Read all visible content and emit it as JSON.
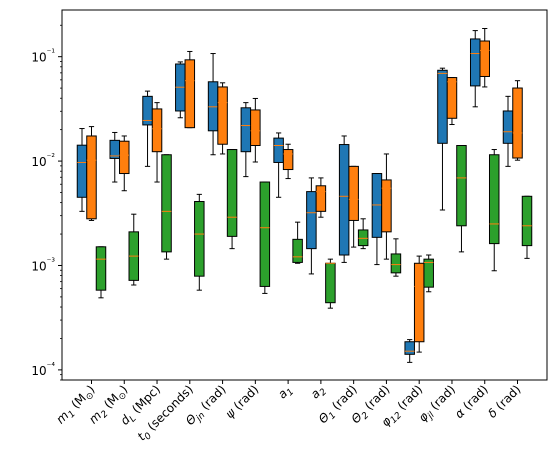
{
  "chart_data": {
    "type": "box",
    "title": "",
    "xlabel": "",
    "ylabel": "",
    "yscale": "log",
    "ylim": [
      8e-05,
      0.28
    ],
    "grid": false,
    "legend": "none",
    "y_tick_values": [
      0.0001,
      0.001,
      0.01,
      0.1
    ],
    "y_tick_labels": [
      "10⁻⁴",
      "10⁻³",
      "10⁻²",
      "10⁻¹"
    ],
    "categories": [
      "m_1 (M_⊙)",
      "m_2 (M_⊙)",
      "d_L (Mpc)",
      "t_0 (seconds)",
      "Θ_jn (rad)",
      "ψ (rad)",
      "a_1",
      "a_2",
      "Θ_1 (rad)",
      "Θ_2 (rad)",
      "φ_12 (rad)",
      "φ_jl (rad)",
      "α (rad)",
      "δ (rad)"
    ],
    "category_labels": [
      {
        "main": "m",
        "sub": "1",
        "rest": " (M",
        "sub2": "⊙",
        "tail": ")"
      },
      {
        "main": "m",
        "sub": "2",
        "rest": " (M",
        "sub2": "⊙",
        "tail": ")"
      },
      {
        "main": "d",
        "sub": "L",
        "rest": " (Mpc)",
        "sub2": "",
        "tail": ""
      },
      {
        "main": "t",
        "sub": "0",
        "rest": " (seconds)",
        "sub2": "",
        "tail": ""
      },
      {
        "main": "Θ",
        "sub": "jn",
        "rest": " (rad)",
        "sub2": "",
        "tail": ""
      },
      {
        "main": "ψ",
        "sub": "",
        "rest": " (rad)",
        "sub2": "",
        "tail": ""
      },
      {
        "main": "a",
        "sub": "1",
        "rest": "",
        "sub2": "",
        "tail": ""
      },
      {
        "main": "a",
        "sub": "2",
        "rest": "",
        "sub2": "",
        "tail": ""
      },
      {
        "main": "Θ",
        "sub": "1",
        "rest": " (rad)",
        "sub2": "",
        "tail": ""
      },
      {
        "main": "Θ",
        "sub": "2",
        "rest": " (rad)",
        "sub2": "",
        "tail": ""
      },
      {
        "main": "φ",
        "sub": "12",
        "rest": " (rad)",
        "sub2": "",
        "tail": ""
      },
      {
        "main": "φ",
        "sub": "jl",
        "rest": " (rad)",
        "sub2": "",
        "tail": ""
      },
      {
        "main": "α",
        "sub": "",
        "rest": " (rad)",
        "sub2": "",
        "tail": ""
      },
      {
        "main": "δ",
        "sub": "",
        "rest": " (rad)",
        "sub2": "",
        "tail": ""
      }
    ],
    "colors": {
      "median": "#ff7f0e",
      "edge": "#000000",
      "background": "#ffffff"
    },
    "series": [
      {
        "color": "#1f77b4",
        "boxes": [
          {
            "whislo": 0.0033,
            "q1": 0.0045,
            "med": 0.0097,
            "q3": 0.0142,
            "whishi": 0.0205
          },
          {
            "whislo": 0.0063,
            "q1": 0.0106,
            "med": 0.0112,
            "q3": 0.0158,
            "whishi": 0.0188
          },
          {
            "whislo": 0.0089,
            "q1": 0.0222,
            "med": 0.0245,
            "q3": 0.0417,
            "whishi": 0.0468
          },
          {
            "whislo": 0.026,
            "q1": 0.0302,
            "med": 0.051,
            "q3": 0.0851,
            "whishi": 0.0891
          },
          {
            "whislo": 0.0115,
            "q1": 0.0195,
            "med": 0.0331,
            "q3": 0.0575,
            "whishi": 0.1072
          },
          {
            "whislo": 0.0071,
            "q1": 0.0123,
            "med": 0.0219,
            "q3": 0.0324,
            "whishi": 0.0363
          },
          {
            "whislo": 0.0045,
            "q1": 0.0097,
            "med": 0.0141,
            "q3": 0.0166,
            "whishi": 0.0186
          },
          {
            "whislo": 0.00083,
            "q1": 0.00145,
            "med": 0.0032,
            "q3": 0.0051,
            "whishi": 0.0069
          },
          {
            "whislo": 0.00107,
            "q1": 0.00126,
            "med": 0.0046,
            "q3": 0.0144,
            "whishi": 0.0174
          },
          {
            "whislo": 0.00102,
            "q1": 0.00186,
            "med": 0.0038,
            "q3": 0.0076,
            "whishi": 0.0076
          },
          {
            "whislo": 0.000118,
            "q1": 0.000141,
            "med": 0.000151,
            "q3": 0.000186,
            "whishi": 0.000195
          },
          {
            "whislo": 0.0034,
            "q1": 0.0148,
            "med": 0.0692,
            "q3": 0.0741,
            "whishi": 0.0776
          },
          {
            "whislo": 0.0331,
            "q1": 0.0525,
            "med": 0.1072,
            "q3": 0.1479,
            "whishi": 0.1778
          },
          {
            "whislo": 0.0089,
            "q1": 0.0148,
            "med": 0.0191,
            "q3": 0.0302,
            "whishi": 0.0417
          }
        ]
      },
      {
        "color": "#ff7f0e",
        "boxes": [
          {
            "whislo": 0.0027,
            "q1": 0.0028,
            "med": 0.0102,
            "q3": 0.0174,
            "whishi": 0.0214
          },
          {
            "whislo": 0.0052,
            "q1": 0.0076,
            "med": 0.0114,
            "q3": 0.0155,
            "whishi": 0.0174
          },
          {
            "whislo": 0.0063,
            "q1": 0.0123,
            "med": 0.0204,
            "q3": 0.0316,
            "whishi": 0.0363
          },
          {
            "whislo": 0.0209,
            "q1": 0.0209,
            "med": 0.0589,
            "q3": 0.0933,
            "whishi": 0.1122
          },
          {
            "whislo": 0.0117,
            "q1": 0.0145,
            "med": 0.0363,
            "q3": 0.0513,
            "whishi": 0.0562
          },
          {
            "whislo": 0.0098,
            "q1": 0.0141,
            "med": 0.0195,
            "q3": 0.0309,
            "whishi": 0.0398
          },
          {
            "whislo": 0.0068,
            "q1": 0.0083,
            "med": 0.0117,
            "q3": 0.0129,
            "whishi": 0.0145
          },
          {
            "whislo": 0.0029,
            "q1": 0.0033,
            "med": 0.0051,
            "q3": 0.0058,
            "whishi": 0.0069
          },
          {
            "whislo": 0.0015,
            "q1": 0.0027,
            "med": 0.0043,
            "q3": 0.0089,
            "whishi": 0.0089
          },
          {
            "whislo": 0.00115,
            "q1": 0.0021,
            "med": 0.0055,
            "q3": 0.0066,
            "whishi": 0.0117
          },
          {
            "whislo": 0.000148,
            "q1": 0.000186,
            "med": 0.00063,
            "q3": 0.00105,
            "whishi": 0.00123
          },
          {
            "whislo": 0.0224,
            "q1": 0.0257,
            "med": 0.0575,
            "q3": 0.0631,
            "whishi": 0.0631
          },
          {
            "whislo": 0.0513,
            "q1": 0.0646,
            "med": 0.1148,
            "q3": 0.1413,
            "whishi": 0.1862
          },
          {
            "whislo": 0.0102,
            "q1": 0.0107,
            "med": 0.0186,
            "q3": 0.0501,
            "whishi": 0.0589
          }
        ]
      },
      {
        "color": "#2ca02c",
        "boxes": [
          {
            "whislo": 0.00049,
            "q1": 0.00058,
            "med": 0.00115,
            "q3": 0.00151,
            "whishi": 0.00151
          },
          {
            "whislo": 0.00065,
            "q1": 0.00072,
            "med": 0.00123,
            "q3": 0.0021,
            "whishi": 0.0031
          },
          {
            "whislo": 0.00115,
            "q1": 0.00135,
            "med": 0.0033,
            "q3": 0.0115,
            "whishi": 0.0115
          },
          {
            "whislo": 0.00058,
            "q1": 0.00079,
            "med": 0.002,
            "q3": 0.0041,
            "whishi": 0.0048
          },
          {
            "whislo": 0.00145,
            "q1": 0.0019,
            "med": 0.0029,
            "q3": 0.0129,
            "whishi": 0.0129
          },
          {
            "whislo": 0.00054,
            "q1": 0.00063,
            "med": 0.0023,
            "q3": 0.0063,
            "whishi": 0.0063
          },
          {
            "whislo": 0.00105,
            "q1": 0.00107,
            "med": 0.00121,
            "q3": 0.00178,
            "whishi": 0.0026
          },
          {
            "whislo": 0.00039,
            "q1": 0.00044,
            "med": 0.00105,
            "q3": 0.00105,
            "whishi": 0.00115
          },
          {
            "whislo": 0.00145,
            "q1": 0.00155,
            "med": 0.00182,
            "q3": 0.00219,
            "whishi": 0.0028
          },
          {
            "whislo": 0.00079,
            "q1": 0.00085,
            "med": 0.00102,
            "q3": 0.00129,
            "whishi": 0.0018
          },
          {
            "whislo": 0.00056,
            "q1": 0.00062,
            "med": 0.00107,
            "q3": 0.00115,
            "whishi": 0.00126
          },
          {
            "whislo": 0.00135,
            "q1": 0.0024,
            "med": 0.0069,
            "q3": 0.0141,
            "whishi": 0.0141
          },
          {
            "whislo": 0.00089,
            "q1": 0.00162,
            "med": 0.0025,
            "q3": 0.0115,
            "whishi": 0.0129
          },
          {
            "whislo": 0.00117,
            "q1": 0.00155,
            "med": 0.0024,
            "q3": 0.0046,
            "whishi": 0.0046
          }
        ]
      }
    ]
  }
}
